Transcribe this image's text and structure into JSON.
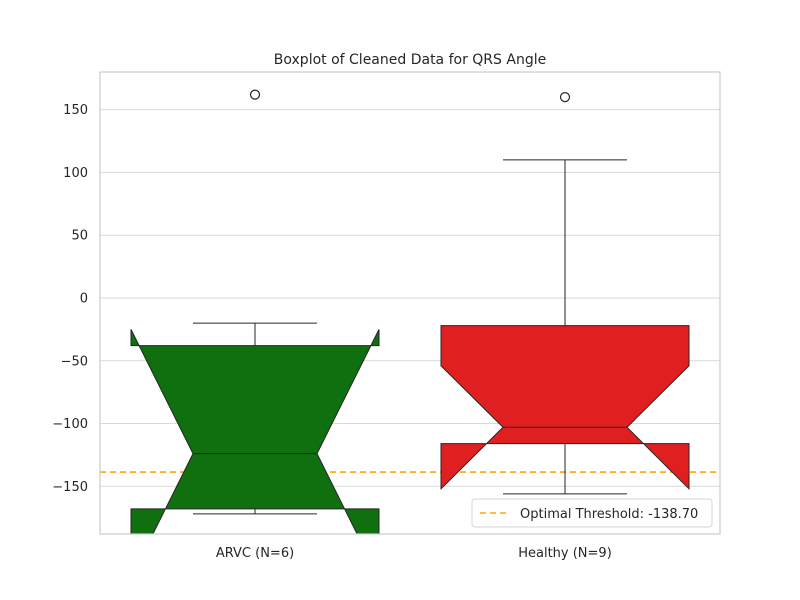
{
  "chart_data": {
    "type": "boxplot",
    "title": "Boxplot of Cleaned Data for QRS Angle",
    "xlabel": "",
    "ylabel": "",
    "ylim": [
      -188,
      180
    ],
    "yticks": [
      150,
      100,
      50,
      0,
      -50,
      -100,
      -150
    ],
    "ytick_labels": [
      "150",
      "100",
      "50",
      "0",
      "−50",
      "−100",
      "−150"
    ],
    "notched": true,
    "grid": true,
    "categories": [
      "ARVC (N=6)",
      "Healthy (N=9)"
    ],
    "boxes": [
      {
        "category": "ARVC (N=6)",
        "color": "#107010",
        "q1": -168,
        "median": -124,
        "q3": -38,
        "notch_low": -223,
        "notch_high": -25,
        "whisker_low": -172,
        "whisker_high": -20,
        "fliers": [
          162
        ]
      },
      {
        "category": "Healthy (N=9)",
        "color": "#e02020",
        "q1": -116,
        "median": -103,
        "q3": -22,
        "notch_low": -152,
        "notch_high": -54,
        "whisker_low": -156,
        "whisker_high": 110,
        "fliers": [
          160
        ]
      }
    ],
    "threshold": {
      "value": -138.7,
      "color": "#ffa500",
      "label": "Optimal Threshold: -138.70"
    },
    "legend_position": "lower-right"
  }
}
